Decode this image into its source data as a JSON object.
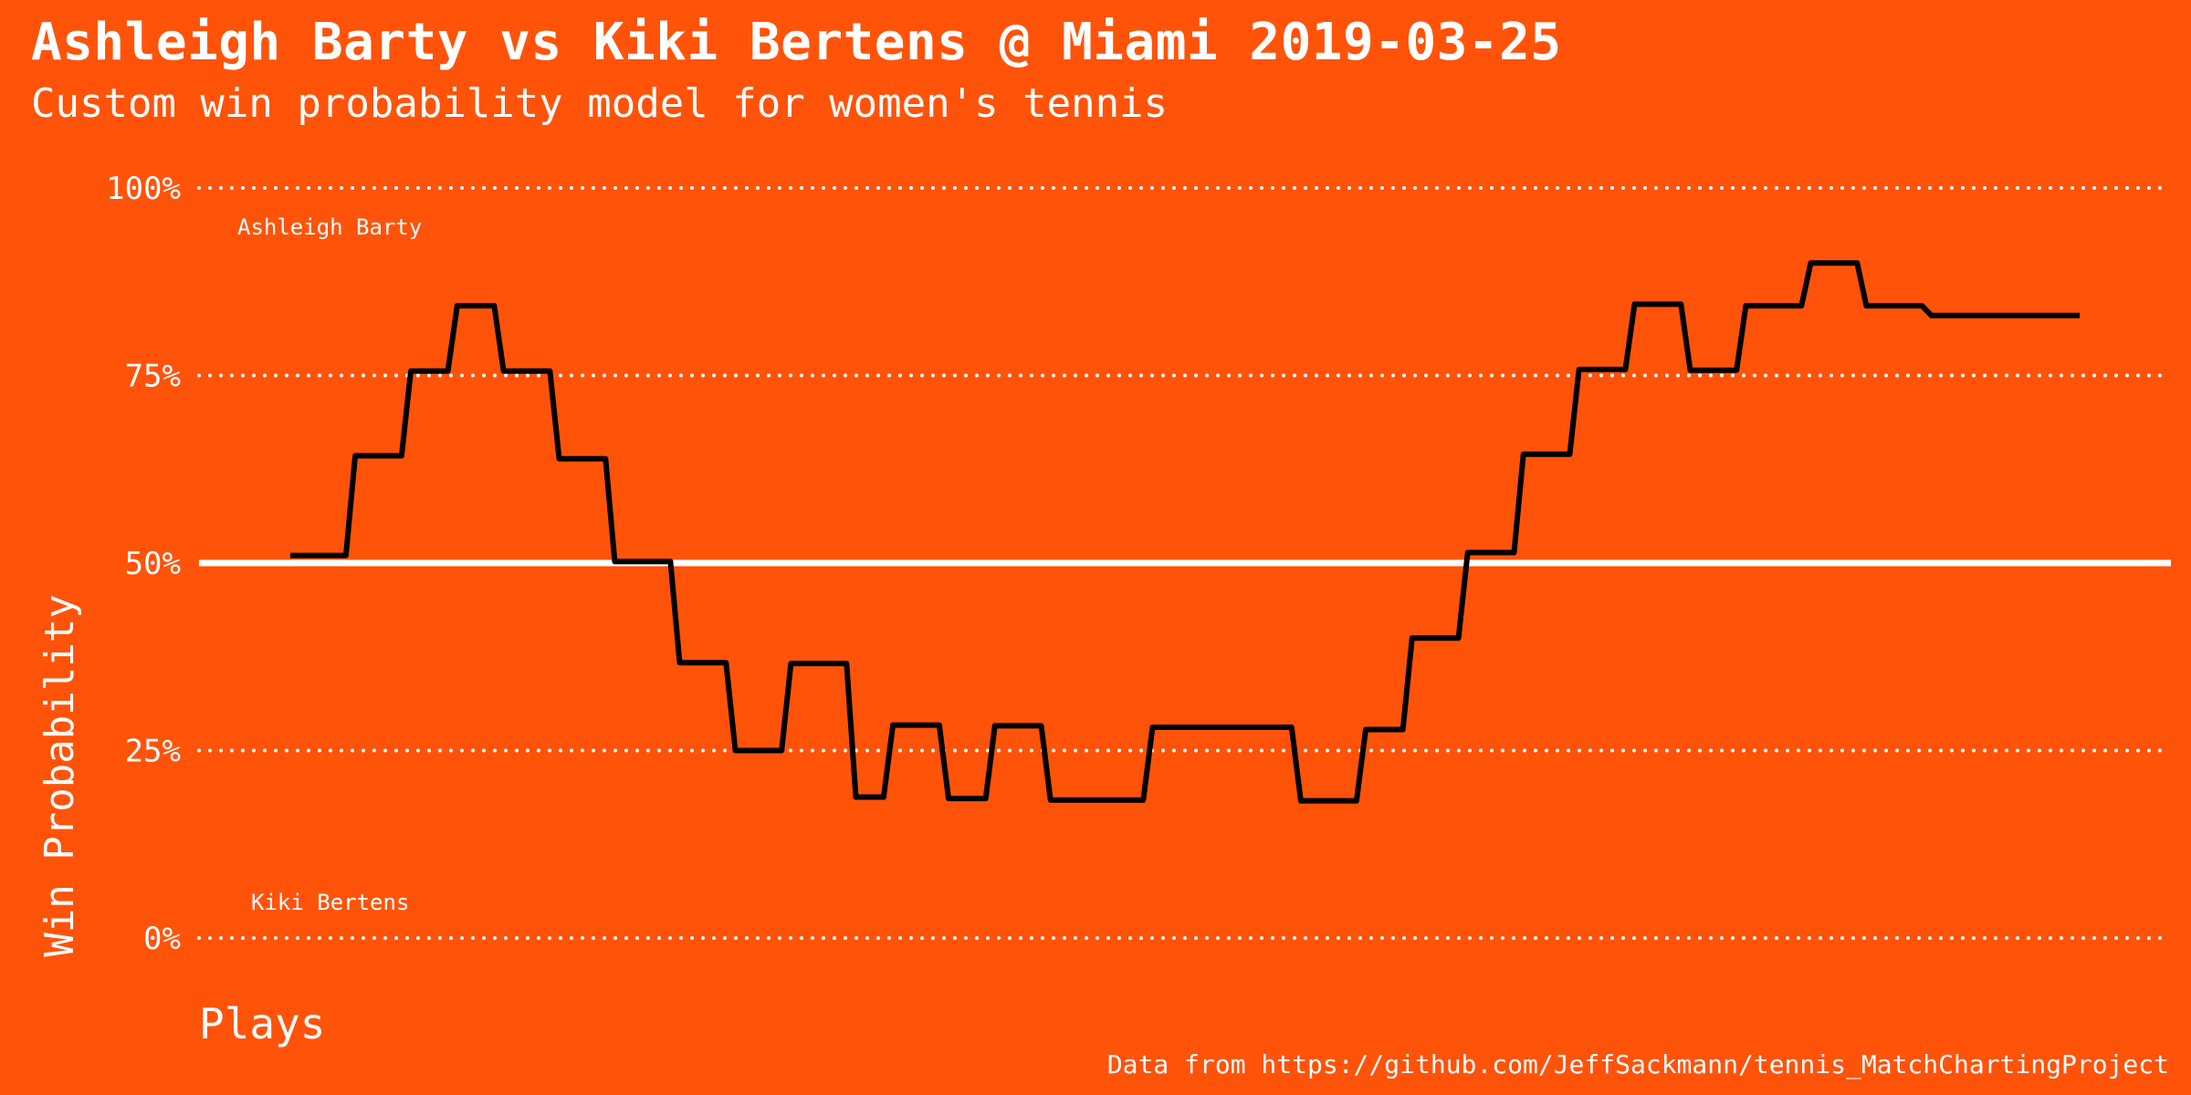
{
  "header": {
    "title": "Ashleigh Barty vs Kiki Bertens @ Miami 2019-03-25",
    "subtitle": "Custom win probability model for women's tennis"
  },
  "footer": {
    "source": "Data from https://github.com/JeffSackmann/tennis_MatchChartingProject"
  },
  "colors": {
    "background": "#FF530A",
    "line": "#000000",
    "text": "#FFFFFF",
    "grid": "#FFFFFF"
  },
  "chart_data": {
    "type": "line",
    "title": "Ashleigh Barty vs Kiki Bertens @ Miami 2019-03-25",
    "subtitle": "Custom win probability model for women's tennis",
    "xlabel": "Plays",
    "ylabel": "Win Probability",
    "ylim": [
      0,
      1
    ],
    "y_ticks": [
      0,
      0.25,
      0.5,
      0.75,
      1.0
    ],
    "y_tick_labels": [
      "0%",
      "25%",
      "50%",
      "75%",
      "100%"
    ],
    "grid": "horizontal dotted",
    "reference_line": 0.5,
    "top_label": "Ashleigh Barty",
    "bottom_label": "Kiki Bertens",
    "series": [
      {
        "x": [
          0,
          6,
          7,
          12,
          13,
          17,
          18,
          22,
          23,
          28,
          29,
          34,
          35,
          41,
          42,
          47,
          48,
          53,
          54,
          60,
          61,
          64,
          65,
          70,
          71,
          75,
          76,
          81,
          82,
          86,
          87,
          92,
          93,
          108,
          109,
          115,
          116,
          120,
          121,
          126,
          127,
          132,
          133,
          138,
          139,
          144,
          145,
          150,
          151,
          156,
          157,
          163,
          164,
          169,
          170,
          176,
          177,
          182,
          183,
          190,
          191,
          193
        ],
        "y": [
          0.51,
          0.51,
          0.643,
          0.643,
          0.756,
          0.756,
          0.843,
          0.843,
          0.756,
          0.756,
          0.639,
          0.639,
          0.502,
          0.502,
          0.367,
          0.367,
          0.25,
          0.25,
          0.366,
          0.366,
          0.188,
          0.188,
          0.284,
          0.284,
          0.186,
          0.186,
          0.283,
          0.283,
          0.184,
          0.184,
          0.184,
          0.184,
          0.281,
          0.281,
          0.183,
          0.183,
          0.278,
          0.278,
          0.4,
          0.4,
          0.514,
          0.514,
          0.645,
          0.645,
          0.758,
          0.758,
          0.845,
          0.845,
          0.757,
          0.757,
          0.843,
          0.843,
          0.9,
          0.9,
          0.843,
          0.843,
          0.83,
          0.83,
          0.83,
          0.83,
          0.83,
          0.83
        ]
      }
    ]
  }
}
